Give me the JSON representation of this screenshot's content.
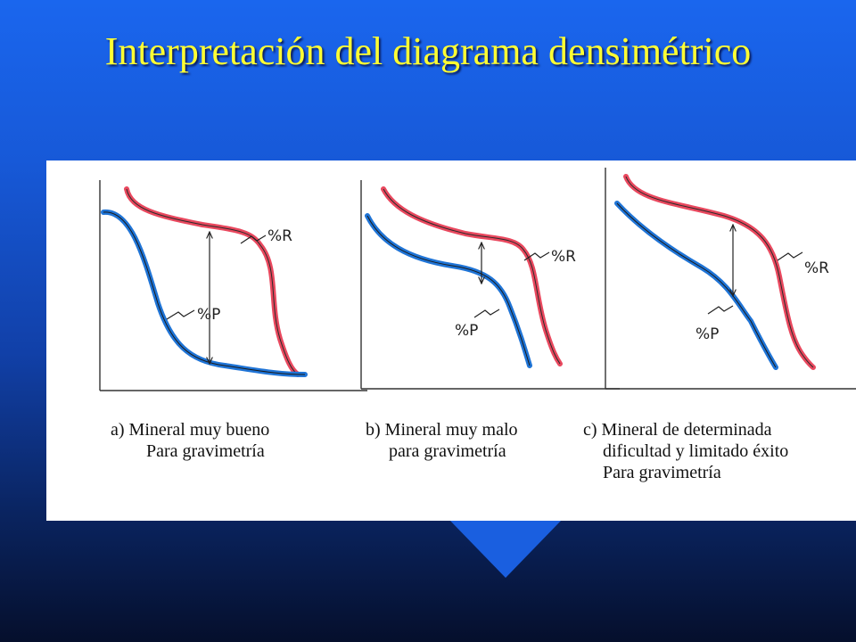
{
  "slide": {
    "title": "Interpretación del diagrama densimétrico"
  },
  "panels": [
    {
      "id": "a",
      "red_label": "%R",
      "blue_label": "%P",
      "caption_line1": "a)   Mineral muy bueno",
      "caption_line2": "Para gravimetría",
      "caption_line3": ""
    },
    {
      "id": "b",
      "red_label": "%R",
      "blue_label": "%P",
      "caption_line1": "b) Mineral muy malo",
      "caption_line2": "para gravimetría",
      "caption_line3": ""
    },
    {
      "id": "c",
      "red_label": "%R",
      "blue_label": "%P",
      "caption_line1": "c) Mineral de determinada",
      "caption_line2": "dificultad y limitado éxito",
      "caption_line3": "Para gravimetría"
    }
  ],
  "colors": {
    "background_top": "#1a66ee",
    "background_bottom": "#050f2c",
    "title": "#ffff33",
    "red_curve": "#e9485e",
    "blue_curve": "#1f74d6"
  }
}
